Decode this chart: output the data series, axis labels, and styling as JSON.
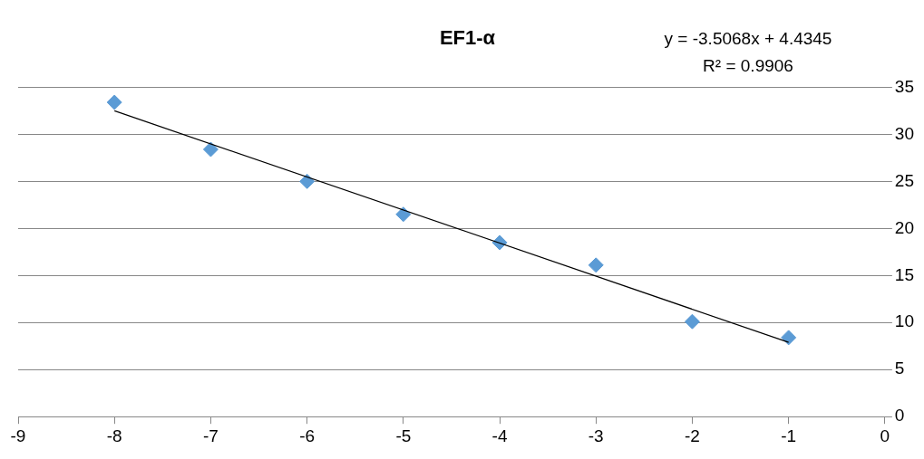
{
  "chart_data": {
    "type": "scatter",
    "title": "EF1-α",
    "x": [
      -8,
      -7,
      -6,
      -5,
      -4,
      -3,
      -2,
      -1
    ],
    "series": [
      {
        "color": "#5b9bd5",
        "marker": "diamond",
        "values": [
          33.4,
          28.4,
          25.0,
          21.5,
          18.5,
          16.1,
          10.1,
          8.4
        ]
      },
      {
        "type": "line",
        "color": "#000000",
        "marker": "none",
        "x": [
          -8,
          -1
        ],
        "values": [
          32.5,
          7.9
        ]
      }
    ],
    "xlim": [
      -9,
      0
    ],
    "xticks": [
      -9,
      -8,
      -7,
      -6,
      -5,
      -4,
      -3,
      -2,
      -1,
      0
    ],
    "ylim": [
      0,
      35
    ],
    "yticks": [
      0,
      5,
      10,
      15,
      20,
      25,
      30,
      35
    ],
    "grid": "y",
    "legend": false,
    "annotations": [
      "y = -3.5068x + 4.4345",
      "R² = 0.9906"
    ]
  }
}
